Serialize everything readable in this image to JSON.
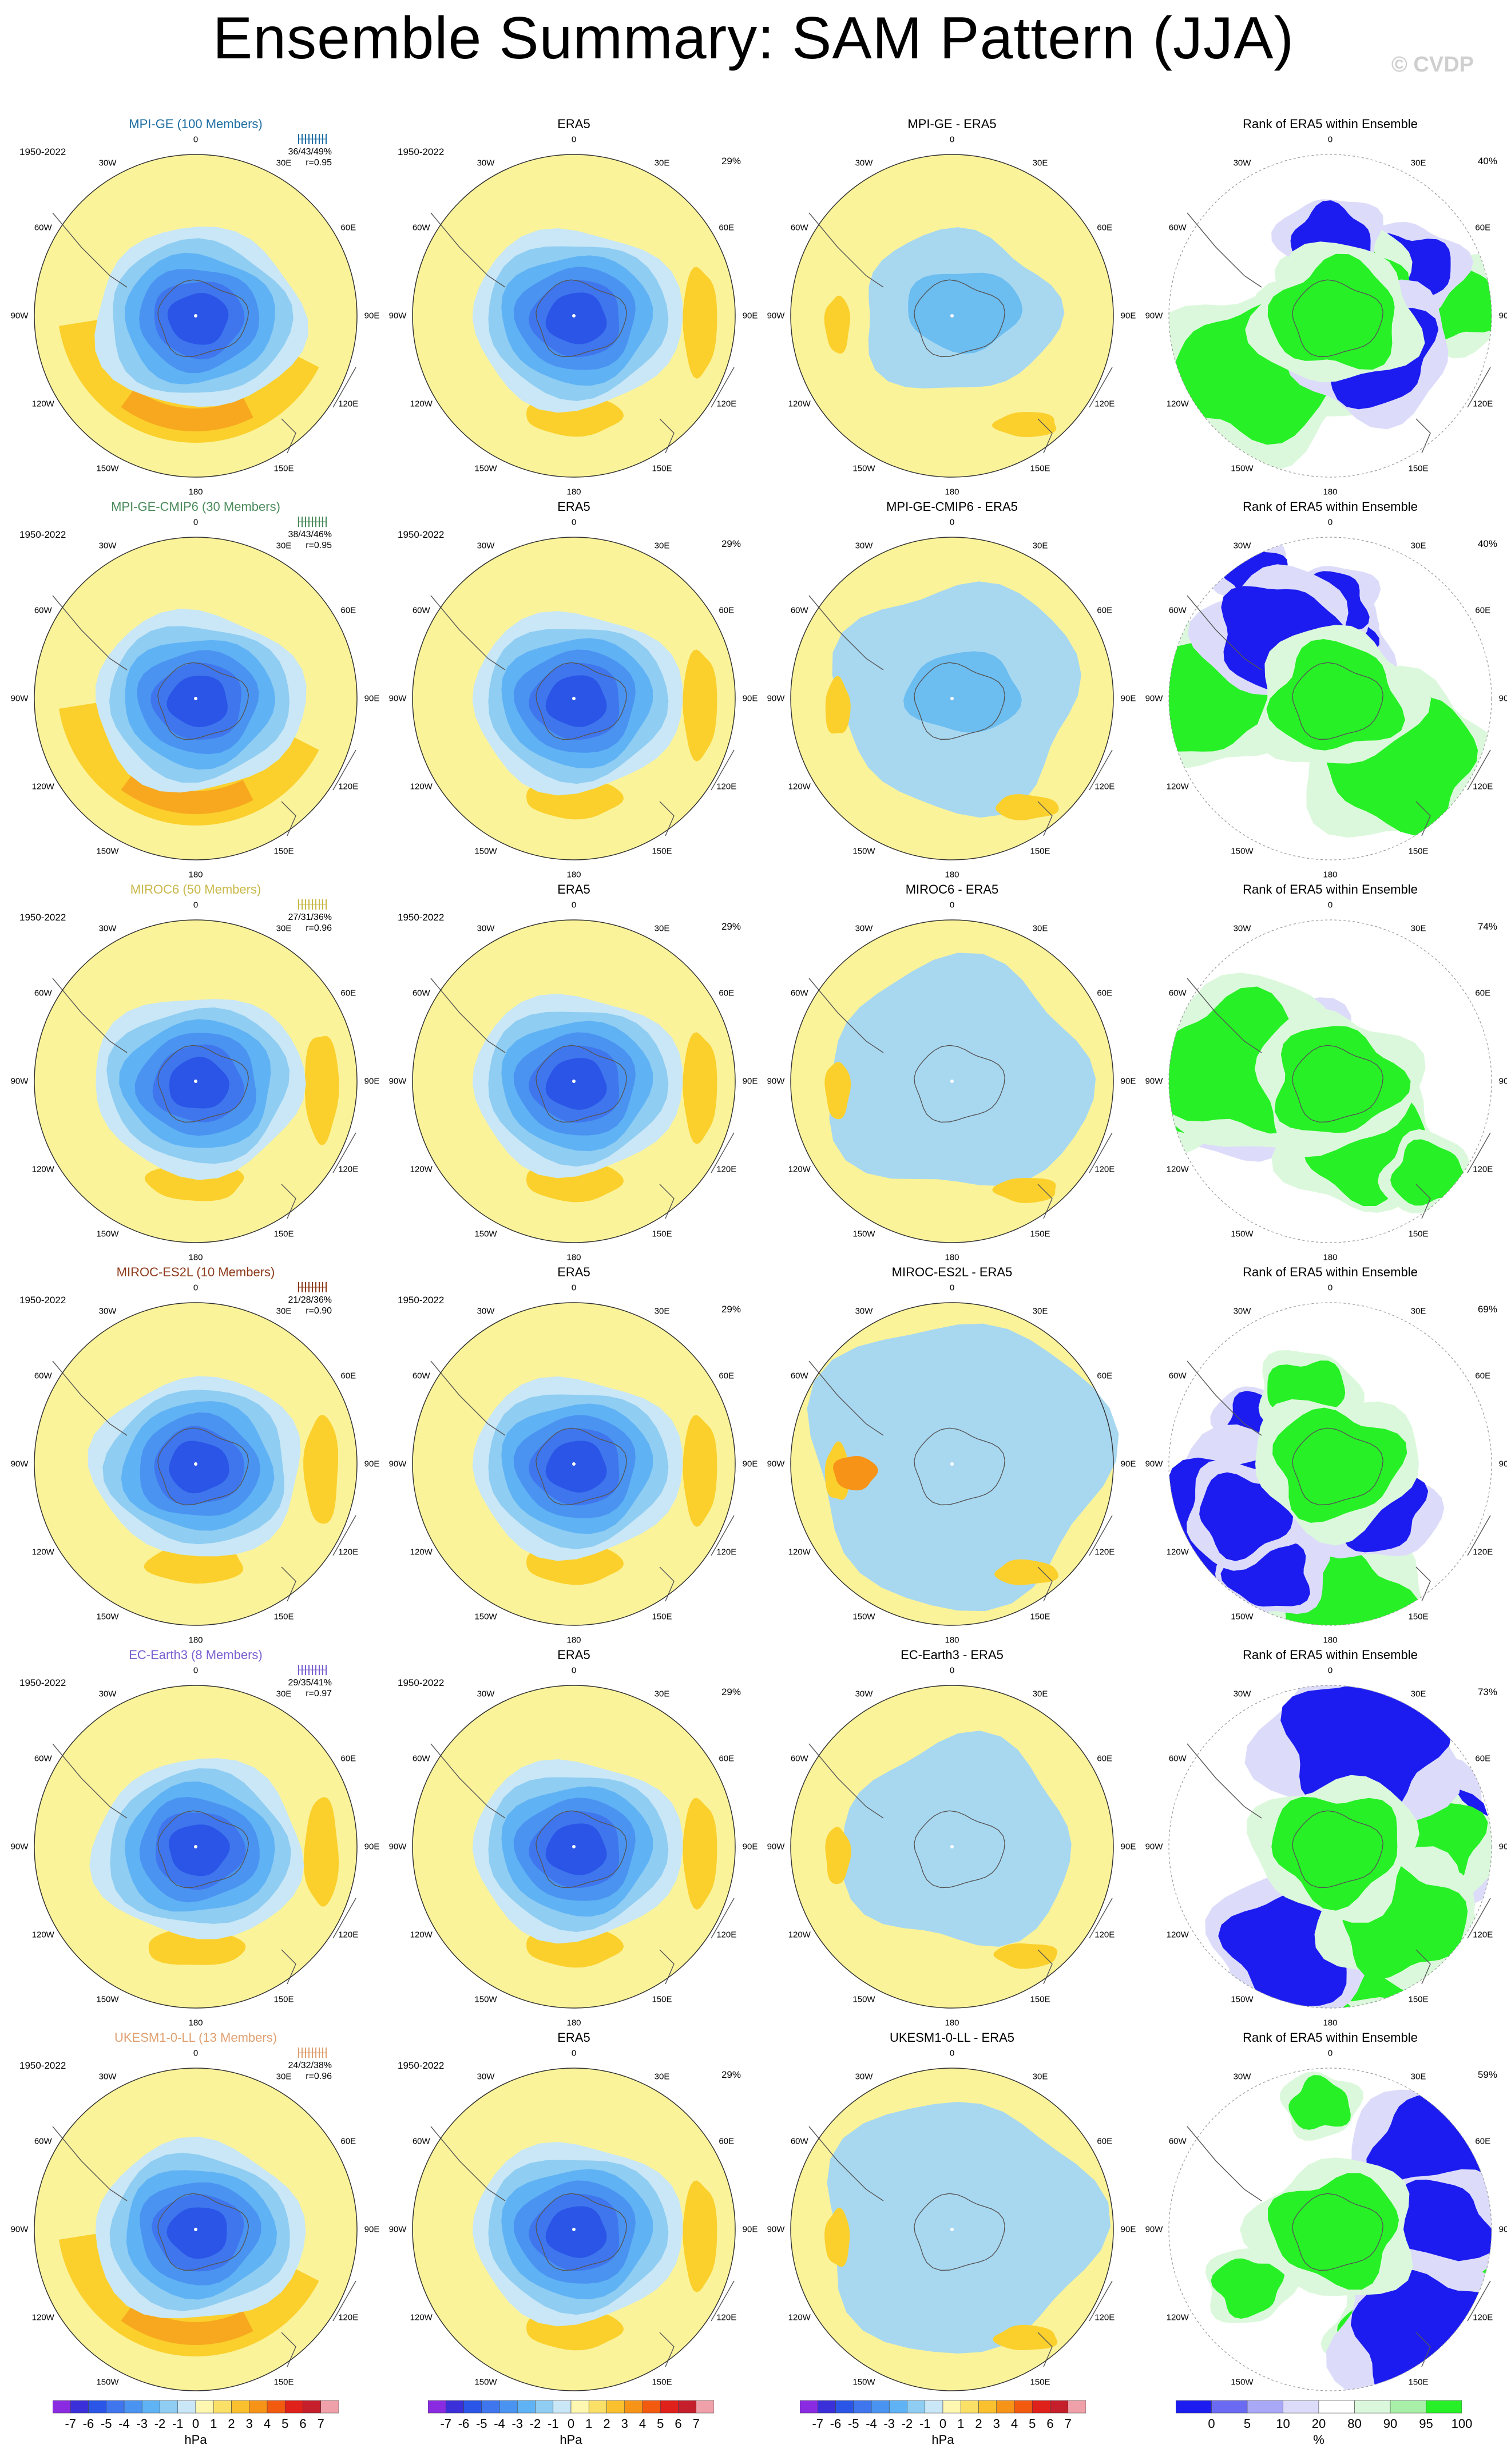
{
  "title": "Ensemble Summary: SAM Pattern (JJA)",
  "copyright": "© CVDP",
  "period": "1950-2022",
  "lon_labels": [
    "0",
    "30E",
    "60E",
    "90E",
    "120E",
    "150E",
    "180",
    "150W",
    "120W",
    "90W",
    "60W",
    "30W"
  ],
  "colors": {
    "ocean": "#fbf39a",
    "lightblue": "#a8d8f0",
    "rank_blue": "#1c1cf0",
    "rank_green": "#27f027"
  },
  "rows": [
    {
      "model": "MPI-GE (100 Members)",
      "model_color": "#1f6fa3",
      "stats": "36/43/49%",
      "r": "r=0.95",
      "era5_pct": "29%",
      "diff_title": "MPI-GE - ERA5",
      "rank_pct": "40%"
    },
    {
      "model": "MPI-GE-CMIP6 (30 Members)",
      "model_color": "#4a8a5a",
      "stats": "38/43/46%",
      "r": "r=0.95",
      "era5_pct": "29%",
      "diff_title": "MPI-GE-CMIP6 - ERA5",
      "rank_pct": "40%"
    },
    {
      "model": "MIROC6 (50 Members)",
      "model_color": "#c9b84a",
      "stats": "27/31/36%",
      "r": "r=0.96",
      "era5_pct": "29%",
      "diff_title": "MIROC6 - ERA5",
      "rank_pct": "74%"
    },
    {
      "model": "MIROC-ES2L (10 Members)",
      "model_color": "#8b3a1a",
      "stats": "21/28/36%",
      "r": "r=0.90",
      "era5_pct": "29%",
      "diff_title": "MIROC-ES2L - ERA5",
      "rank_pct": "69%"
    },
    {
      "model": "EC-Earth3 (8 Members)",
      "model_color": "#7a5fd0",
      "stats": "29/35/41%",
      "r": "r=0.97",
      "era5_pct": "29%",
      "diff_title": "EC-Earth3 - ERA5",
      "rank_pct": "73%"
    },
    {
      "model": "UKESM1-0-LL (13 Members)",
      "model_color": "#e0a070",
      "stats": "24/32/38%",
      "r": "r=0.96",
      "era5_pct": "29%",
      "diff_title": "UKESM1-0-LL - ERA5",
      "rank_pct": "59%"
    }
  ],
  "era5_title": "ERA5",
  "rank_title": "Rank of ERA5 within Ensemble",
  "colorbar_hpa": {
    "ticks": [
      "-7",
      "-6",
      "-5",
      "-4",
      "-3",
      "-2",
      "-1",
      "0",
      "1",
      "2",
      "3",
      "4",
      "5",
      "6",
      "7"
    ],
    "colors": [
      "#8a2be2",
      "#3a2fd9",
      "#2a55e6",
      "#3f76ee",
      "#4a93f0",
      "#5fb2f4",
      "#8fcdf2",
      "#c9e7f6",
      "#fdf7b0",
      "#fbe068",
      "#fbc02d",
      "#f79418",
      "#f25a10",
      "#e0201a",
      "#c41f2a",
      "#f0a0a8"
    ],
    "unit": "hPa"
  },
  "colorbar_rank": {
    "ticks": [
      "0",
      "5",
      "10",
      "20",
      "80",
      "90",
      "95",
      "100"
    ],
    "colors": [
      "#1c1cf0",
      "#6a6af2",
      "#a8a8f6",
      "#dcdcfa",
      "#ffffff",
      "#dcf8dc",
      "#a8f0a8",
      "#27f027"
    ],
    "unit": "%"
  }
}
